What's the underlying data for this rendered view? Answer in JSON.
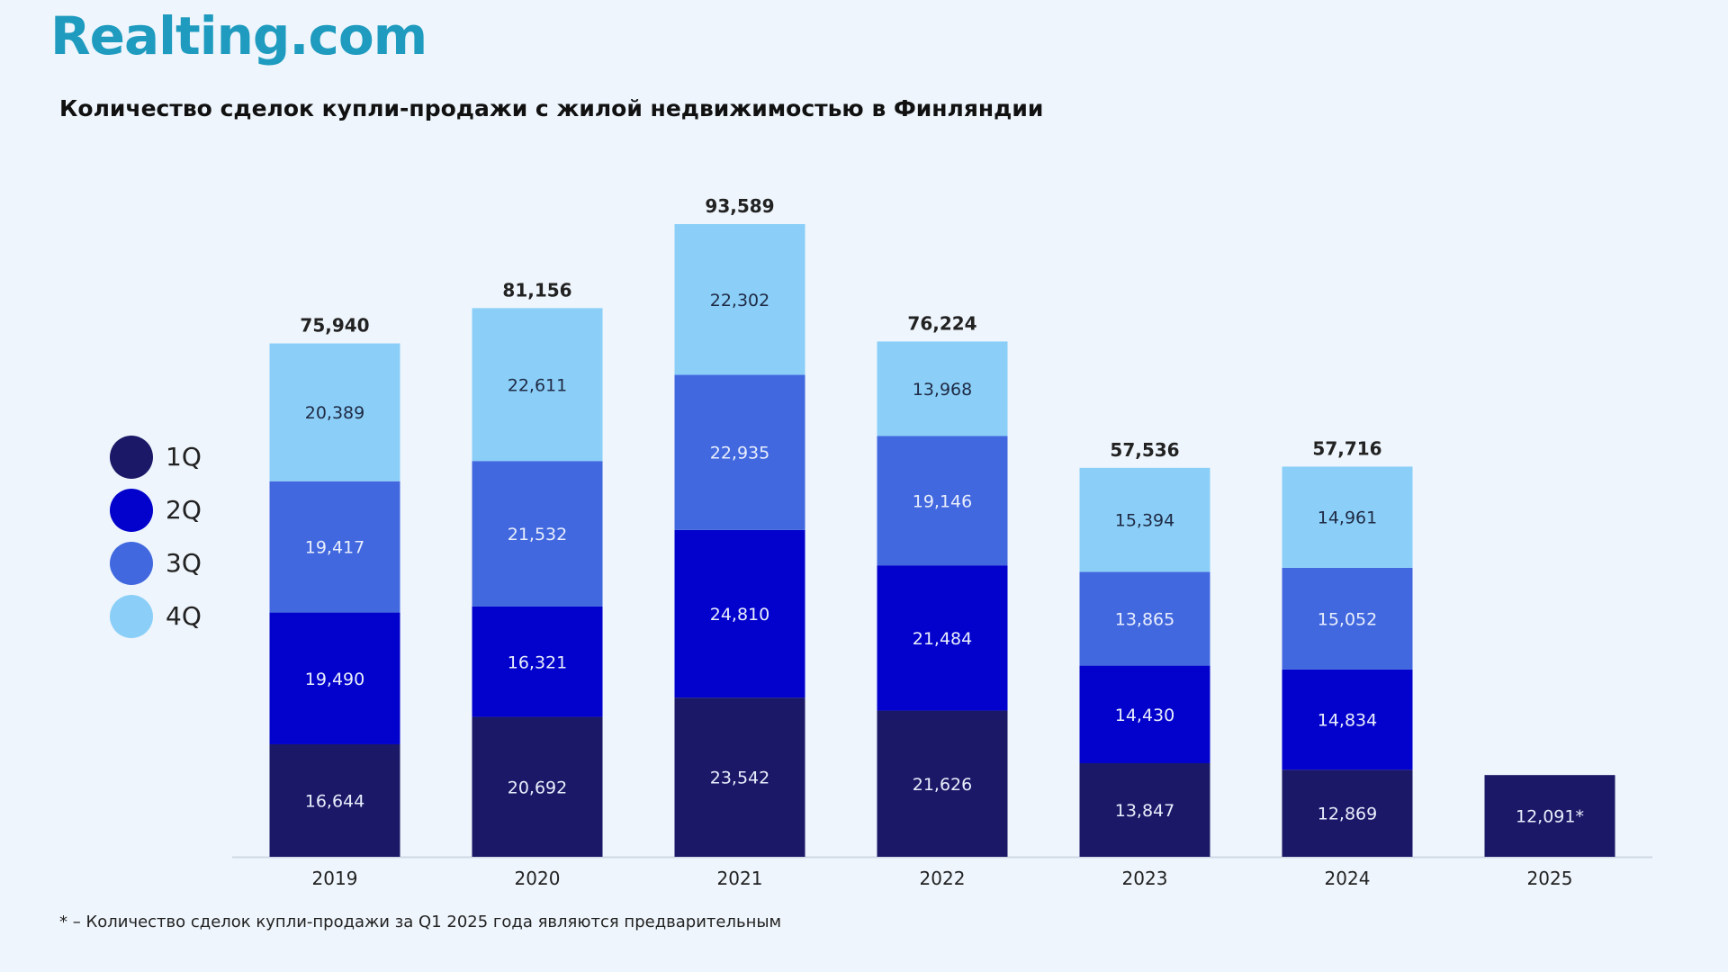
{
  "brand": {
    "logo_text": "Realting.com"
  },
  "footnote": "* – Количество сделок купли-продажи за Q1 2025 года являются предварительным",
  "colors": {
    "1Q": "#1b1867",
    "2Q": "#0202cc",
    "3Q": "#4168df",
    "4Q": "#8bcff8",
    "background": "#eef5fc",
    "brand": "#1e9bbf"
  },
  "legend": [
    {
      "label": "1Q",
      "color": "#1b1867"
    },
    {
      "label": "2Q",
      "color": "#0202cc"
    },
    {
      "label": "3Q",
      "color": "#4168df"
    },
    {
      "label": "4Q",
      "color": "#8bcff8"
    }
  ],
  "chart_data": {
    "type": "bar",
    "stacked": true,
    "title": "Количество сделок купли-продажи с жилой недвижимостью в Финляндии",
    "xlabel": "",
    "ylabel": "",
    "ylim": [
      0,
      93589
    ],
    "grid": false,
    "legend_position": "left",
    "categories": [
      "2019",
      "2020",
      "2021",
      "2022",
      "2023",
      "2024",
      "2025"
    ],
    "series": [
      {
        "name": "1Q",
        "values": [
          16644,
          20692,
          23542,
          21626,
          13847,
          12869,
          12091
        ],
        "labels": [
          "16,644",
          "20,692",
          "23,542",
          "21,626",
          "13,847",
          "12,869",
          "12,091*"
        ]
      },
      {
        "name": "2Q",
        "values": [
          19490,
          16321,
          24810,
          21484,
          14430,
          14834,
          null
        ],
        "labels": [
          "19,490",
          "16,321",
          "24,810",
          "21,484",
          "14,430",
          "14,834",
          ""
        ]
      },
      {
        "name": "3Q",
        "values": [
          19417,
          21532,
          22935,
          19146,
          13865,
          15052,
          null
        ],
        "labels": [
          "19,417",
          "21,532",
          "22,935",
          "19,146",
          "13,865",
          "15,052",
          ""
        ]
      },
      {
        "name": "4Q",
        "values": [
          20389,
          22611,
          22302,
          13968,
          15394,
          14961,
          null
        ],
        "labels": [
          "20,389",
          "22,611",
          "22,302",
          "13,968",
          "15,394",
          "14,961",
          ""
        ]
      }
    ],
    "totals": [
      75940,
      81156,
      93589,
      76224,
      57536,
      57716,
      null
    ],
    "total_labels": [
      "75,940",
      "81,156",
      "93,589",
      "76,224",
      "57,536",
      "57,716",
      ""
    ]
  }
}
